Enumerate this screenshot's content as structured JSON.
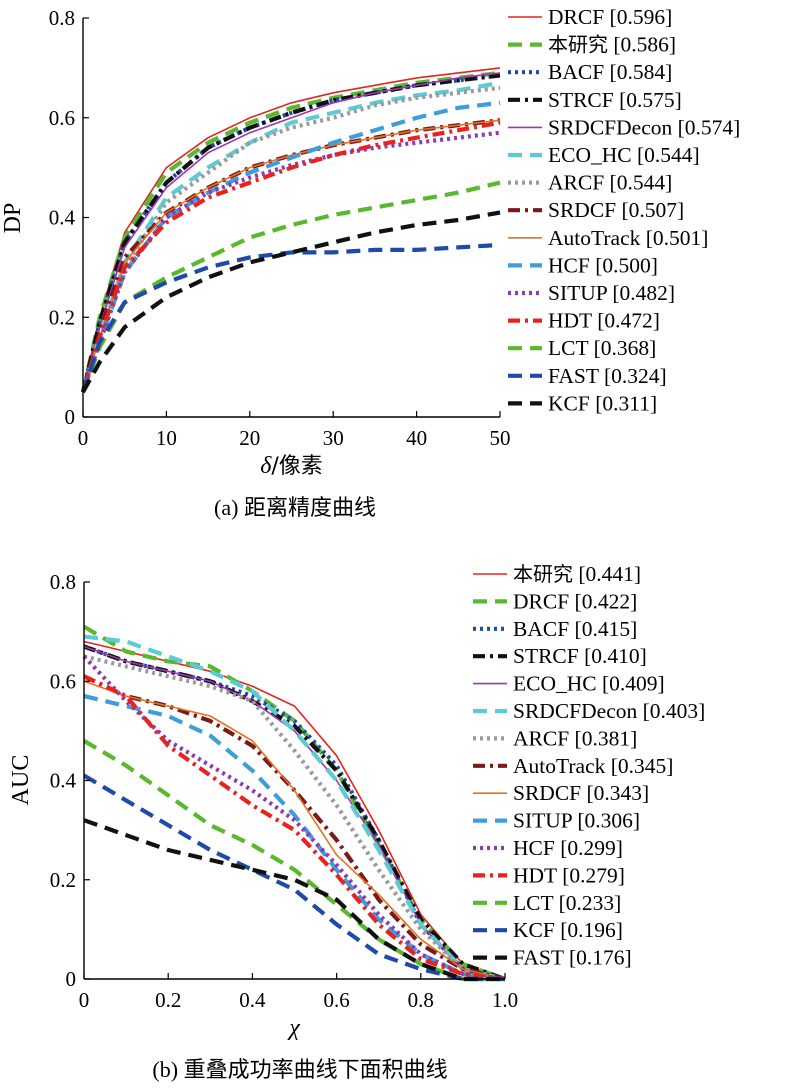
{
  "captions": {
    "a": "(a) 距离精度曲线",
    "b": "(b) 重叠成功率曲线下面积曲线"
  },
  "chart_data": [
    {
      "type": "line",
      "ylabel": "DP",
      "xlabel_symbol": "δ",
      "xlabel_text": "/像素",
      "xlim": [
        0,
        50
      ],
      "ylim": [
        0,
        0.8
      ],
      "xticks": [
        "0",
        "10",
        "20",
        "30",
        "40",
        "50"
      ],
      "yticks": [
        "0",
        "0.2",
        "0.4",
        "0.6",
        "0.8"
      ],
      "legend_position": "right",
      "x": [
        0,
        2,
        5,
        10,
        15,
        20,
        25,
        30,
        35,
        40,
        45,
        50
      ],
      "series": [
        {
          "name": "DRCF",
          "score": "[0.596]",
          "color": "#e8231f",
          "style": "thin",
          "values": [
            0.05,
            0.2,
            0.37,
            0.5,
            0.56,
            0.6,
            0.63,
            0.65,
            0.665,
            0.68,
            0.69,
            0.7
          ]
        },
        {
          "name": "本研究",
          "score": "[0.586]",
          "color": "#5ab82f",
          "style": "dash",
          "values": [
            0.05,
            0.2,
            0.36,
            0.49,
            0.55,
            0.59,
            0.62,
            0.64,
            0.655,
            0.67,
            0.68,
            0.69
          ]
        },
        {
          "name": "BACF",
          "score": "[0.584]",
          "color": "#1f4aa8",
          "style": "dot",
          "values": [
            0.05,
            0.19,
            0.35,
            0.47,
            0.54,
            0.58,
            0.61,
            0.635,
            0.65,
            0.665,
            0.675,
            0.685
          ]
        },
        {
          "name": "STRCF",
          "score": "[0.575]",
          "color": "#111111",
          "style": "dashdot",
          "values": [
            0.05,
            0.19,
            0.35,
            0.47,
            0.54,
            0.58,
            0.61,
            0.635,
            0.65,
            0.665,
            0.675,
            0.685
          ]
        },
        {
          "name": "SRDCFDecon",
          "score": "[0.574]",
          "color": "#9b35b5",
          "style": "thin",
          "values": [
            0.05,
            0.18,
            0.34,
            0.46,
            0.53,
            0.57,
            0.6,
            0.63,
            0.65,
            0.665,
            0.68,
            0.69
          ]
        },
        {
          "name": "ECO_HC",
          "score": "[0.544]",
          "color": "#5ccbd3",
          "style": "dash",
          "values": [
            0.05,
            0.16,
            0.31,
            0.44,
            0.5,
            0.55,
            0.59,
            0.61,
            0.63,
            0.645,
            0.655,
            0.67
          ]
        },
        {
          "name": "ARCF",
          "score": "[0.544]",
          "color": "#9a9a9a",
          "style": "dot",
          "values": [
            0.05,
            0.15,
            0.3,
            0.43,
            0.49,
            0.55,
            0.58,
            0.6,
            0.625,
            0.64,
            0.65,
            0.66
          ]
        },
        {
          "name": "SRDCF",
          "score": "[0.507]",
          "color": "#7a1a1a",
          "style": "dashdot",
          "values": [
            0.05,
            0.17,
            0.32,
            0.41,
            0.46,
            0.5,
            0.525,
            0.545,
            0.56,
            0.575,
            0.585,
            0.595
          ]
        },
        {
          "name": "AutoTrack",
          "score": "[0.501]",
          "color": "#e8701f",
          "style": "thin",
          "values": [
            0.05,
            0.16,
            0.31,
            0.41,
            0.46,
            0.5,
            0.525,
            0.545,
            0.56,
            0.575,
            0.585,
            0.595
          ]
        },
        {
          "name": "HCF",
          "score": "[0.500]",
          "color": "#3f9ddb",
          "style": "dash",
          "values": [
            0.05,
            0.15,
            0.29,
            0.4,
            0.45,
            0.49,
            0.52,
            0.55,
            0.575,
            0.6,
            0.62,
            0.63
          ]
        },
        {
          "name": "SITUP",
          "score": "[0.482]",
          "color": "#8b3bb3",
          "style": "dot",
          "values": [
            0.05,
            0.15,
            0.29,
            0.4,
            0.45,
            0.48,
            0.505,
            0.525,
            0.54,
            0.55,
            0.56,
            0.57
          ]
        },
        {
          "name": "HDT",
          "score": "[0.472]",
          "color": "#e8231f",
          "style": "dashdot",
          "values": [
            0.05,
            0.16,
            0.3,
            0.39,
            0.44,
            0.47,
            0.5,
            0.525,
            0.545,
            0.56,
            0.575,
            0.59
          ]
        },
        {
          "name": "LCT",
          "score": "[0.368]",
          "color": "#5ab82f",
          "style": "dash",
          "values": [
            0.05,
            0.14,
            0.23,
            0.28,
            0.32,
            0.36,
            0.385,
            0.405,
            0.42,
            0.435,
            0.45,
            0.47
          ]
        },
        {
          "name": "FAST",
          "score": "[0.324]",
          "color": "#1f4aa8",
          "style": "dash",
          "values": [
            0.05,
            0.15,
            0.23,
            0.27,
            0.3,
            0.32,
            0.33,
            0.33,
            0.335,
            0.335,
            0.34,
            0.345
          ]
        },
        {
          "name": "KCF",
          "score": "[0.311]",
          "color": "#111111",
          "style": "dash",
          "values": [
            0.05,
            0.11,
            0.18,
            0.24,
            0.28,
            0.31,
            0.33,
            0.35,
            0.37,
            0.385,
            0.395,
            0.41
          ]
        }
      ]
    },
    {
      "type": "line",
      "ylabel": "AUC",
      "xlabel_symbol": "χ",
      "xlabel_text": "",
      "xlim": [
        0,
        1
      ],
      "ylim": [
        0,
        0.8
      ],
      "xticks": [
        "0",
        "0.2",
        "0.4",
        "0.6",
        "0.8",
        "1.0"
      ],
      "yticks": [
        "0",
        "0.2",
        "0.4",
        "0.6",
        "0.8"
      ],
      "legend_position": "right",
      "x": [
        0,
        0.1,
        0.2,
        0.3,
        0.4,
        0.5,
        0.6,
        0.7,
        0.8,
        0.9,
        1.0
      ],
      "series": [
        {
          "name": "本研究",
          "score": "[0.441]",
          "color": "#e8231f",
          "style": "thin",
          "values": [
            0.68,
            0.66,
            0.64,
            0.62,
            0.59,
            0.55,
            0.45,
            0.3,
            0.13,
            0.03,
            0.0
          ]
        },
        {
          "name": "DRCF",
          "score": "[0.422]",
          "color": "#5ab82f",
          "style": "dash",
          "values": [
            0.71,
            0.66,
            0.64,
            0.63,
            0.58,
            0.52,
            0.42,
            0.27,
            0.12,
            0.03,
            0.0
          ]
        },
        {
          "name": "BACF",
          "score": "[0.415]",
          "color": "#1f4aa8",
          "style": "dot",
          "values": [
            0.67,
            0.64,
            0.62,
            0.6,
            0.57,
            0.52,
            0.43,
            0.28,
            0.11,
            0.02,
            0.0
          ]
        },
        {
          "name": "STRCF",
          "score": "[0.410]",
          "color": "#111111",
          "style": "dashdot",
          "values": [
            0.67,
            0.64,
            0.62,
            0.6,
            0.56,
            0.51,
            0.42,
            0.28,
            0.12,
            0.03,
            0.0
          ]
        },
        {
          "name": "ECO_HC",
          "score": "[0.409]",
          "color": "#9b35b5",
          "style": "thin",
          "values": [
            0.67,
            0.64,
            0.62,
            0.6,
            0.56,
            0.5,
            0.4,
            0.27,
            0.11,
            0.02,
            0.0
          ]
        },
        {
          "name": "SRDCFDecon",
          "score": "[0.403]",
          "color": "#5ccbd3",
          "style": "dash",
          "values": [
            0.69,
            0.68,
            0.65,
            0.62,
            0.58,
            0.5,
            0.4,
            0.26,
            0.11,
            0.02,
            0.0
          ]
        },
        {
          "name": "ARCF",
          "score": "[0.381]",
          "color": "#9a9a9a",
          "style": "dot",
          "values": [
            0.65,
            0.63,
            0.61,
            0.59,
            0.56,
            0.46,
            0.35,
            0.22,
            0.1,
            0.02,
            0.0
          ]
        },
        {
          "name": "AutoTrack",
          "score": "[0.345]",
          "color": "#7a1a1a",
          "style": "dashdot",
          "values": [
            0.61,
            0.57,
            0.55,
            0.52,
            0.47,
            0.38,
            0.28,
            0.16,
            0.07,
            0.02,
            0.0
          ]
        },
        {
          "name": "SRDCF",
          "score": "[0.343]",
          "color": "#e8701f",
          "style": "thin",
          "values": [
            0.6,
            0.57,
            0.55,
            0.53,
            0.48,
            0.38,
            0.25,
            0.17,
            0.08,
            0.02,
            0.0
          ]
        },
        {
          "name": "SITUP",
          "score": "[0.306]",
          "color": "#3f9ddb",
          "style": "dash",
          "values": [
            0.57,
            0.55,
            0.53,
            0.49,
            0.42,
            0.33,
            0.22,
            0.12,
            0.05,
            0.01,
            0.0
          ]
        },
        {
          "name": "HCF",
          "score": "[0.299]",
          "color": "#8b3bb3",
          "style": "dot",
          "values": [
            0.65,
            0.56,
            0.48,
            0.43,
            0.38,
            0.32,
            0.23,
            0.13,
            0.05,
            0.01,
            0.0
          ]
        },
        {
          "name": "HDT",
          "score": "[0.279]",
          "color": "#e8231f",
          "style": "dashdot",
          "values": [
            0.61,
            0.57,
            0.47,
            0.41,
            0.35,
            0.3,
            0.21,
            0.11,
            0.04,
            0.01,
            0.0
          ]
        },
        {
          "name": "LCT",
          "score": "[0.233]",
          "color": "#5ab82f",
          "style": "dash",
          "values": [
            0.48,
            0.43,
            0.37,
            0.31,
            0.27,
            0.22,
            0.15,
            0.08,
            0.03,
            0.0,
            0.0
          ]
        },
        {
          "name": "KCF",
          "score": "[0.196]",
          "color": "#1f4aa8",
          "style": "dash",
          "values": [
            0.41,
            0.36,
            0.31,
            0.26,
            0.22,
            0.18,
            0.11,
            0.05,
            0.02,
            0.0,
            0.0
          ]
        },
        {
          "name": "FAST",
          "score": "[0.176]",
          "color": "#111111",
          "style": "dash",
          "values": [
            0.32,
            0.29,
            0.26,
            0.24,
            0.22,
            0.2,
            0.16,
            0.08,
            0.03,
            0.0,
            0.0
          ]
        }
      ]
    }
  ]
}
